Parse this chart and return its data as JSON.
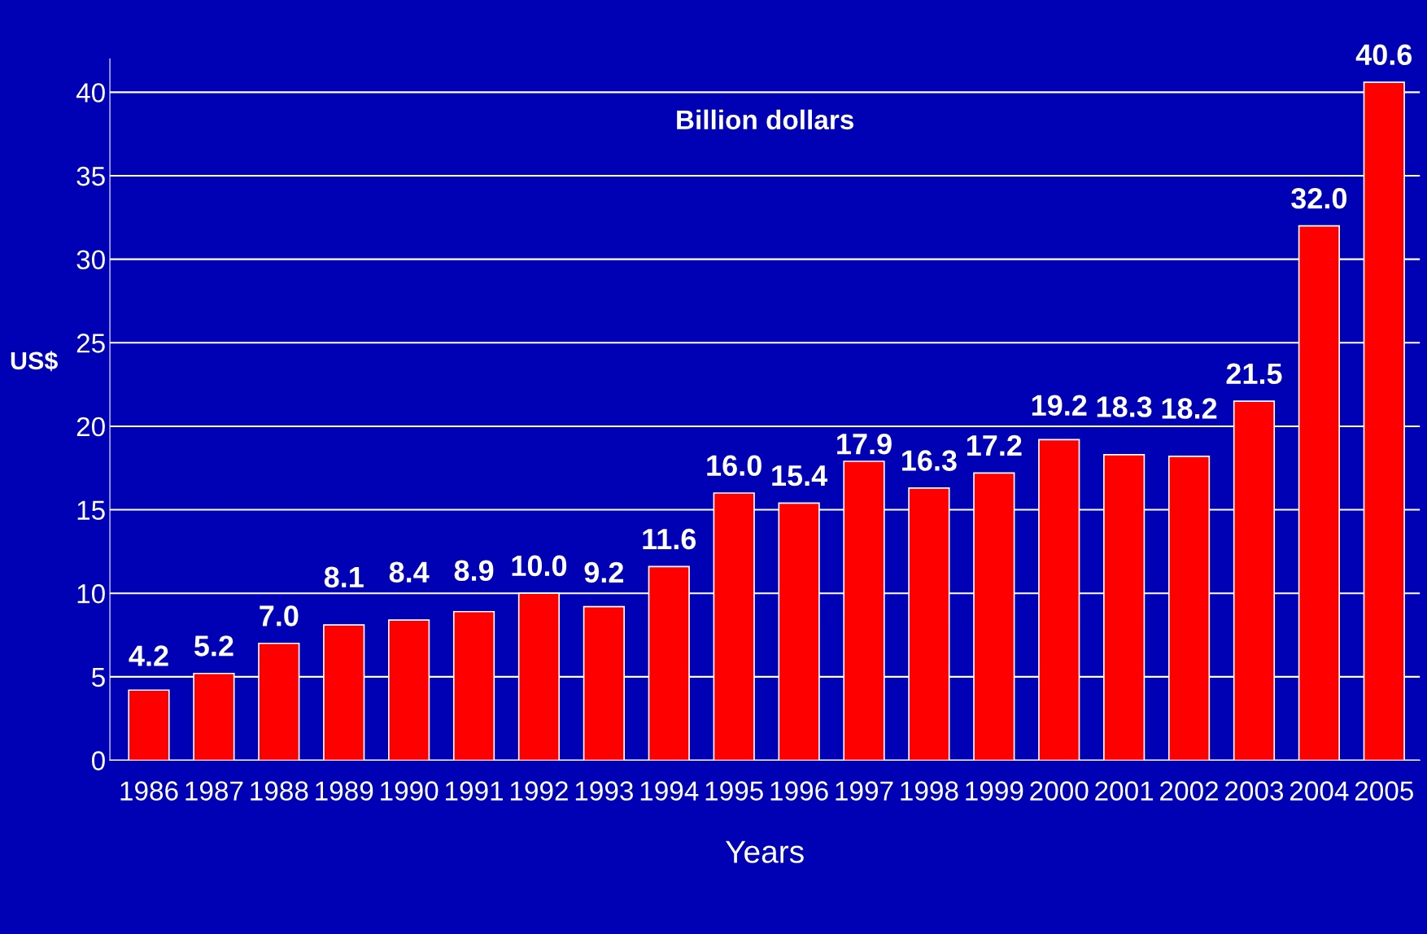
{
  "chart_data": {
    "type": "bar",
    "title": "Billion dollars",
    "xlabel": "Years",
    "ylabel": "US$",
    "categories": [
      "1986",
      "1987",
      "1988",
      "1989",
      "1990",
      "1991",
      "1992",
      "1993",
      "1994",
      "1995",
      "1996",
      "1997",
      "1998",
      "1999",
      "2000",
      "2001",
      "2002",
      "2003",
      "2004",
      "2005"
    ],
    "values": [
      4.2,
      5.2,
      7.0,
      8.1,
      8.4,
      8.9,
      10.0,
      9.2,
      11.6,
      16.0,
      15.4,
      17.9,
      16.3,
      17.2,
      19.2,
      18.3,
      18.2,
      21.5,
      32.0,
      40.6
    ],
    "value_labels": [
      "4.2",
      "5.2",
      "7.0",
      "8.1",
      "8.4",
      "8.9",
      "10.0",
      "9.2",
      "11.6",
      "16.0",
      "15.4",
      "17.9",
      "16.3",
      "17.2",
      "19.2",
      "18.3",
      "18.2",
      "21.5",
      "32.0",
      "40.6"
    ],
    "color": "#ff0000",
    "ylim": [
      0,
      42
    ],
    "yticks": [
      0,
      5,
      10,
      15,
      20,
      25,
      30,
      35,
      40
    ],
    "grid": "y"
  }
}
